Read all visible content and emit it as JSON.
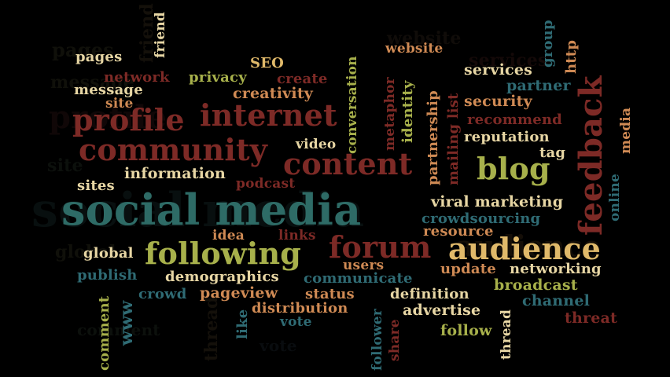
{
  "palette": {
    "teal": "#2e6b66",
    "red": "#7d2a26",
    "cream": "#e7d6a4",
    "olive": "#a7b04b",
    "orange": "#cf8a54",
    "blue": "#2f6b74",
    "faded": "#3a3a2e"
  },
  "words": {
    "social_media": "social media",
    "following": "following",
    "audience": "audience",
    "forum": "forum",
    "community": "community",
    "content": "content",
    "profile": "profile",
    "internet": "internet",
    "blog": "blog",
    "feedback": "feedback",
    "pages": "pages",
    "friend": "friend",
    "seo": "SEO",
    "website": "website",
    "services": "services",
    "group": "group",
    "http": "http",
    "network": "network",
    "privacy": "privacy",
    "create": "create",
    "conversation": "conversation",
    "partner": "partner",
    "message": "message",
    "creativity": "creativity",
    "site": "site",
    "metaphor": "metaphor",
    "identity": "identity",
    "partnership": "partnership",
    "mailing_list": "mailing list",
    "security": "security",
    "recommend": "recommend",
    "media": "media",
    "video": "video",
    "reputation": "reputation",
    "tag": "tag",
    "information": "information",
    "sites": "sites",
    "podcast": "podcast",
    "online": "online",
    "viral_marketing": "viral marketing",
    "crowdsourcing": "crowdsourcing",
    "resource": "resource",
    "idea": "idea",
    "links": "links",
    "global": "global",
    "users": "users",
    "update": "update",
    "networking": "networking",
    "publish": "publish",
    "demographics": "demographics",
    "communicate": "communicate",
    "broadcast": "broadcast",
    "crowd": "crowd",
    "pageview": "pageview",
    "status": "status",
    "definition": "definition",
    "channel": "channel",
    "comment": "comment",
    "www": "www",
    "like": "like",
    "distribution": "distribution",
    "advertise": "advertise",
    "threat": "threat",
    "vote": "vote",
    "follower": "follower",
    "share": "share",
    "follow": "follow",
    "thread": "thread"
  }
}
